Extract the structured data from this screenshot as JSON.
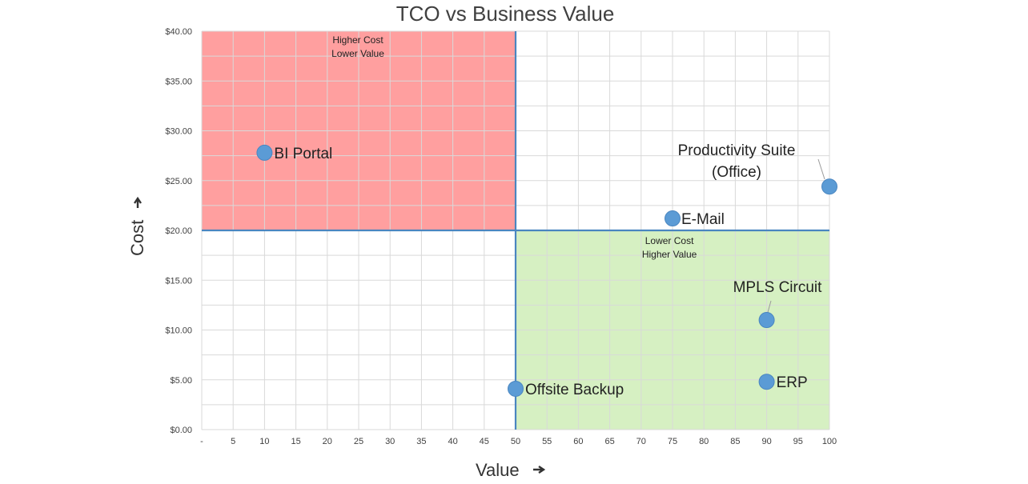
{
  "chart_data": {
    "type": "scatter",
    "title": "TCO vs Business Value",
    "xlabel": "Value",
    "ylabel": "Cost",
    "xlim": [
      0,
      100
    ],
    "ylim": [
      0,
      40
    ],
    "grid": true,
    "x_ticks": [
      "-",
      "5",
      "10",
      "15",
      "20",
      "25",
      "30",
      "35",
      "40",
      "45",
      "50",
      "55",
      "60",
      "65",
      "70",
      "75",
      "80",
      "85",
      "90",
      "95",
      "100"
    ],
    "y_ticks": [
      "$0.00",
      "$5.00",
      "$10.00",
      "$15.00",
      "$20.00",
      "$25.00",
      "$30.00",
      "$35.00",
      "$40.00"
    ],
    "divider": {
      "x": 50,
      "y": 20
    },
    "quadrants": [
      {
        "label_lines": [
          "Higher Cost",
          "Lower Value"
        ],
        "x_range": [
          0,
          50
        ],
        "y_range": [
          20,
          40
        ],
        "color": "#ff9f9f"
      },
      {
        "label_lines": [
          "Lower Cost",
          "Higher Value"
        ],
        "x_range": [
          50,
          100
        ],
        "y_range": [
          0,
          20
        ],
        "color": "#d6f0c2"
      }
    ],
    "points": [
      {
        "label": "BI Portal",
        "x": 10,
        "y": 27.8
      },
      {
        "label": "Productivity Suite (Office)",
        "label_lines": [
          "Productivity Suite",
          "(Office)"
        ],
        "x": 100,
        "y": 24.4
      },
      {
        "label": "E-Mail",
        "x": 75,
        "y": 21.2
      },
      {
        "label": "MPLS Circuit",
        "x": 90,
        "y": 11
      },
      {
        "label": "ERP",
        "x": 90,
        "y": 4.8
      },
      {
        "label": "Offsite Backup",
        "x": 50,
        "y": 4.1
      }
    ],
    "colors": {
      "point": "#5b9bd5",
      "point_stroke": "#4a86c0",
      "divider": "#4a86c0",
      "grid": "#d9d9d9"
    }
  }
}
